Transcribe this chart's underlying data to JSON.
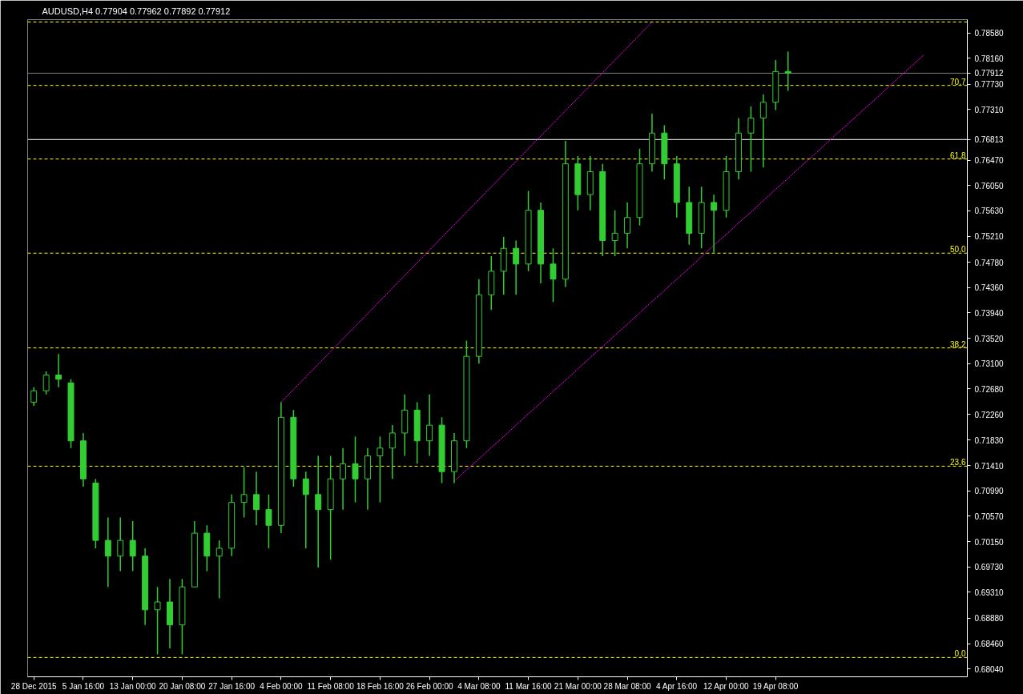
{
  "chart_data": {
    "type": "candlestick",
    "title": "AUDUSD,H4  0.77904 0.77962 0.77892 0.77912",
    "color": "#32cd32",
    "categories": [
      "28 Dec 2015",
      null,
      null,
      null,
      "5 Jan 16:00",
      null,
      null,
      null,
      "13 Jan 00:00",
      null,
      null,
      null,
      "20 Jan 08:00",
      null,
      null,
      null,
      "27 Jan 16:00",
      null,
      null,
      null,
      "4 Feb 00:00",
      null,
      null,
      null,
      "11 Feb 08:00",
      null,
      null,
      null,
      "18 Feb 16:00",
      null,
      null,
      null,
      "26 Feb 00:00",
      null,
      null,
      null,
      "4 Mar 08:00",
      null,
      null,
      null,
      "11 Mar 16:00",
      null,
      null,
      null,
      "21 Mar 00:00",
      null,
      null,
      null,
      "28 Mar 08:00",
      null,
      null,
      null,
      "4 Apr 16:00",
      null,
      null,
      null,
      "12 Apr 00:00",
      null,
      null,
      null,
      "19 Apr 08:00",
      null,
      null,
      null,
      null,
      null,
      null,
      null,
      null,
      null,
      null,
      null,
      null,
      null,
      null,
      null
    ],
    "ohlc": [
      [
        0.7246,
        0.7271,
        0.724,
        0.7265
      ],
      [
        0.7265,
        0.7297,
        0.7259,
        0.7291
      ],
      [
        0.7291,
        0.7326,
        0.7271,
        0.7284
      ],
      [
        0.7278,
        0.7284,
        0.717,
        0.7182
      ],
      [
        0.7182,
        0.7195,
        0.7106,
        0.7119
      ],
      [
        0.7112,
        0.7119,
        0.7004,
        0.7017
      ],
      [
        0.7017,
        0.7055,
        0.694,
        0.6991
      ],
      [
        0.6991,
        0.7055,
        0.6966,
        0.7017
      ],
      [
        0.7017,
        0.7049,
        0.6966,
        0.6991
      ],
      [
        0.6991,
        0.7004,
        0.6877,
        0.6902
      ],
      [
        0.6902,
        0.694,
        0.6828,
        0.6915
      ],
      [
        0.6915,
        0.6953,
        0.6838,
        0.6877
      ],
      [
        0.6877,
        0.6953,
        0.6828,
        0.694
      ],
      [
        0.694,
        0.7049,
        0.694,
        0.7029
      ],
      [
        0.7029,
        0.7042,
        0.6966,
        0.6991
      ],
      [
        0.6991,
        0.7017,
        0.6921,
        0.7004
      ],
      [
        0.7004,
        0.7093,
        0.6991,
        0.708
      ],
      [
        0.708,
        0.7138,
        0.7055,
        0.7093
      ],
      [
        0.7093,
        0.7131,
        0.7042,
        0.7068
      ],
      [
        0.7068,
        0.7093,
        0.7004,
        0.7042
      ],
      [
        0.7042,
        0.7246,
        0.7029,
        0.7221
      ],
      [
        0.7221,
        0.7233,
        0.7106,
        0.7119
      ],
      [
        0.7119,
        0.7131,
        0.7004,
        0.7093
      ],
      [
        0.7093,
        0.7157,
        0.6972,
        0.7068
      ],
      [
        0.7068,
        0.7157,
        0.6985,
        0.7119
      ],
      [
        0.7119,
        0.717,
        0.7068,
        0.7144
      ],
      [
        0.7144,
        0.7189,
        0.708,
        0.7119
      ],
      [
        0.7119,
        0.717,
        0.7068,
        0.7157
      ],
      [
        0.7157,
        0.7189,
        0.708,
        0.717
      ],
      [
        0.717,
        0.7208,
        0.7119,
        0.7195
      ],
      [
        0.7195,
        0.7259,
        0.7157,
        0.7233
      ],
      [
        0.7233,
        0.7246,
        0.7144,
        0.7182
      ],
      [
        0.7182,
        0.7259,
        0.7157,
        0.7208
      ],
      [
        0.7208,
        0.7221,
        0.7112,
        0.7131
      ],
      [
        0.7131,
        0.7195,
        0.7112,
        0.7182
      ],
      [
        0.7182,
        0.7348,
        0.717,
        0.7322
      ],
      [
        0.7322,
        0.745,
        0.731,
        0.7424
      ],
      [
        0.7424,
        0.7488,
        0.7399,
        0.7463
      ],
      [
        0.7463,
        0.752,
        0.7424,
        0.7501
      ],
      [
        0.7501,
        0.7514,
        0.7424,
        0.7475
      ],
      [
        0.7475,
        0.7596,
        0.7463,
        0.7564
      ],
      [
        0.7564,
        0.7577,
        0.7443,
        0.7475
      ],
      [
        0.7475,
        0.7501,
        0.7412,
        0.745
      ],
      [
        0.745,
        0.7679,
        0.7437,
        0.7641
      ],
      [
        0.7641,
        0.7654,
        0.7564,
        0.759
      ],
      [
        0.759,
        0.7654,
        0.7564,
        0.7628
      ],
      [
        0.7628,
        0.7641,
        0.7488,
        0.7514
      ],
      [
        0.7514,
        0.7564,
        0.7488,
        0.7526
      ],
      [
        0.7526,
        0.7577,
        0.7501,
        0.7552
      ],
      [
        0.7552,
        0.7666,
        0.7539,
        0.7641
      ],
      [
        0.7641,
        0.7724,
        0.7628,
        0.7692
      ],
      [
        0.7692,
        0.7705,
        0.7615,
        0.7641
      ],
      [
        0.7641,
        0.7654,
        0.7552,
        0.7577
      ],
      [
        0.7577,
        0.7603,
        0.7507,
        0.7526
      ],
      [
        0.7526,
        0.7603,
        0.7501,
        0.7577
      ],
      [
        0.7577,
        0.759,
        0.7494,
        0.7564
      ],
      [
        0.7564,
        0.7654,
        0.7552,
        0.7628
      ],
      [
        0.7628,
        0.7717,
        0.7615,
        0.7692
      ],
      [
        0.7692,
        0.7736,
        0.7628,
        0.7717
      ],
      [
        0.7717,
        0.7756,
        0.7635,
        0.7743
      ],
      [
        0.7743,
        0.7813,
        0.773,
        0.7794
      ],
      [
        0.7794,
        0.7827,
        0.7762,
        0.77912
      ],
      null,
      null,
      null,
      null,
      null,
      null,
      null,
      null,
      null,
      null,
      null,
      null,
      null,
      null
    ],
    "series": [
      {
        "type": "line",
        "color": "#ff00ff",
        "line_style": "dotted",
        "values": [
          null,
          null,
          null,
          null,
          null,
          null,
          null,
          null,
          null,
          null,
          null,
          null,
          null,
          null,
          null,
          null,
          null,
          null,
          null,
          null,
          0.7246,
          0.7267,
          0.7288,
          0.7309,
          0.733,
          0.7351,
          0.7372,
          0.7393,
          0.7414,
          0.7435,
          0.7456,
          0.7477,
          0.7498,
          0.7519,
          0.754,
          0.7561,
          0.7582,
          0.7603,
          0.7624,
          0.7645,
          0.7666,
          0.7687,
          0.7708,
          0.7729,
          0.775,
          0.7771,
          0.7792,
          0.7813,
          0.7834,
          0.7855,
          0.7876,
          null,
          null,
          null,
          null,
          null,
          null,
          null,
          null,
          null,
          null,
          null,
          null,
          null,
          null,
          null,
          null,
          null,
          null,
          null,
          null,
          null,
          null,
          null,
          null,
          null
        ]
      },
      {
        "type": "line",
        "color": "#ff00ff",
        "line_style": "dotted",
        "values": [
          null,
          null,
          null,
          null,
          null,
          null,
          null,
          null,
          null,
          null,
          null,
          null,
          null,
          null,
          null,
          null,
          null,
          null,
          null,
          null,
          null,
          null,
          null,
          null,
          null,
          null,
          null,
          null,
          null,
          null,
          null,
          null,
          null,
          null,
          0.7115,
          0.7134,
          0.7152,
          0.7171,
          0.7189,
          0.7208,
          0.7227,
          0.7245,
          0.7264,
          0.7282,
          0.7301,
          0.732,
          0.7338,
          0.7357,
          0.7375,
          0.7394,
          0.7413,
          0.7431,
          0.745,
          0.7468,
          0.7487,
          0.7506,
          0.7524,
          0.7543,
          0.7561,
          0.758,
          0.7599,
          0.7617,
          0.7636,
          0.7654,
          0.7673,
          0.7692,
          0.771,
          0.7729,
          0.7747,
          0.7766,
          0.7785,
          0.7803,
          0.7822,
          null,
          null,
          null
        ]
      }
    ],
    "ylim": [
      0.6791,
      0.788
    ],
    "yticks": [
      {
        "value": 0.6804,
        "label": "0.68040"
      },
      {
        "value": 0.6846,
        "label": "0.68460"
      },
      {
        "value": 0.6888,
        "label": "0.68880"
      },
      {
        "value": 0.6931,
        "label": "0.69310"
      },
      {
        "value": 0.6973,
        "label": "0.69730"
      },
      {
        "value": 0.7015,
        "label": "0.70150"
      },
      {
        "value": 0.7057,
        "label": "0.70570"
      },
      {
        "value": 0.7099,
        "label": "0.70990"
      },
      {
        "value": 0.7141,
        "label": "0.71410"
      },
      {
        "value": 0.7183,
        "label": "0.71830"
      },
      {
        "value": 0.7226,
        "label": "0.72260"
      },
      {
        "value": 0.7268,
        "label": "0.72680"
      },
      {
        "value": 0.731,
        "label": "0.73100"
      },
      {
        "value": 0.7352,
        "label": "0.73520"
      },
      {
        "value": 0.7394,
        "label": "0.73940"
      },
      {
        "value": 0.7436,
        "label": "0.74360"
      },
      {
        "value": 0.7478,
        "label": "0.74780"
      },
      {
        "value": 0.7521,
        "label": "0.75210"
      },
      {
        "value": 0.7563,
        "label": "0.75630"
      },
      {
        "value": 0.7605,
        "label": "0.76050"
      },
      {
        "value": 0.7647,
        "label": "0.76470"
      },
      {
        "value": 0.7731,
        "label": "0.77310"
      },
      {
        "value": 0.7773,
        "label": "0.77730"
      },
      {
        "value": 0.7816,
        "label": "0.78160"
      },
      {
        "value": 0.7858,
        "label": "0.78580"
      }
    ],
    "ref_lines": [
      {
        "axis": "y",
        "value": 0.6823,
        "color": "#ffff00",
        "line_style": "dashed"
      },
      {
        "axis": "y",
        "value": 0.714,
        "color": "#ffff00",
        "line_style": "dashed"
      },
      {
        "axis": "y",
        "value": 0.7336,
        "color": "#ffff00",
        "line_style": "dashed"
      },
      {
        "axis": "y",
        "value": 0.7493,
        "color": "#ffff00",
        "line_style": "dashed"
      },
      {
        "axis": "y",
        "value": 0.7649,
        "color": "#ffff00",
        "line_style": "dashed"
      },
      {
        "axis": "y",
        "value": 0.7771,
        "color": "#ffff00",
        "line_style": "dashed"
      },
      {
        "axis": "y",
        "value": 0.7876,
        "color": "#ffff00",
        "line_style": "dashed"
      },
      {
        "axis": "y",
        "value": 0.77912,
        "label": "0.77912",
        "color": "#808080",
        "line_style": "solid"
      },
      {
        "axis": "y",
        "value": 0.76813,
        "label": "0.76813",
        "color": "#ffffff",
        "line_style": "solid"
      }
    ],
    "annotations": [
      {
        "text": "0.0",
        "y": 0.6823
      },
      {
        "text": "23.6",
        "y": 0.714
      },
      {
        "text": "38.2",
        "y": 0.7336
      },
      {
        "text": "50.0",
        "y": 0.7493
      },
      {
        "text": "61.8",
        "y": 0.7649
      },
      {
        "text": "70.7",
        "y": 0.7771
      }
    ],
    "tick_labels": true
  }
}
